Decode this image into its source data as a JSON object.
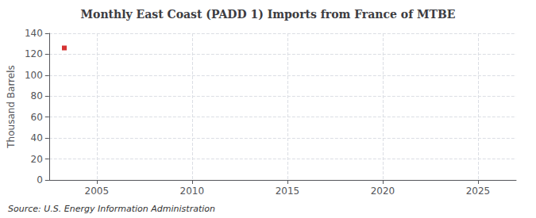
{
  "chart_data": {
    "type": "scatter",
    "title": "Monthly East Coast (PADD 1) Imports from France of MTBE",
    "ylabel": "Thousand Barrels",
    "annotation": "Source: U.S. Energy Information Administration",
    "x": [
      2003.3
    ],
    "values": [
      126
    ],
    "color": "#cc0000",
    "marker": "square",
    "xlim": [
      2002.5,
      2027
    ],
    "xticks": [
      2005,
      2010,
      2015,
      2020,
      2025
    ],
    "ylim": [
      0,
      140
    ],
    "yticks": [
      0,
      20,
      40,
      60,
      80,
      100,
      120,
      140
    ],
    "grid": true
  }
}
